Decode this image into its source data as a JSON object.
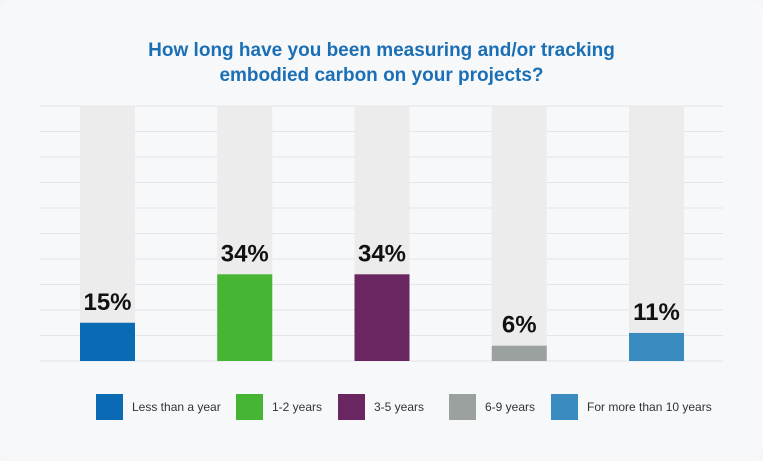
{
  "chart_data": {
    "type": "bar",
    "title_lines": [
      "How long have you been measuring and/or tracking",
      "embodied carbon on your projects?"
    ],
    "categories": [
      "Less than a year",
      "1-2 years",
      "3-5 years",
      "6-9 years",
      "For more than 10 years"
    ],
    "values": [
      15,
      34,
      34,
      6,
      11
    ],
    "value_labels": [
      "15%",
      "34%",
      "34%",
      "6%",
      "11%"
    ],
    "colors": [
      "#0a6ab4",
      "#45b533",
      "#6a2660",
      "#9aa19e",
      "#3a8bbf"
    ],
    "track_color": "#ececec",
    "ylim": [
      0,
      100
    ],
    "grid": true,
    "legend_position": "bottom"
  }
}
